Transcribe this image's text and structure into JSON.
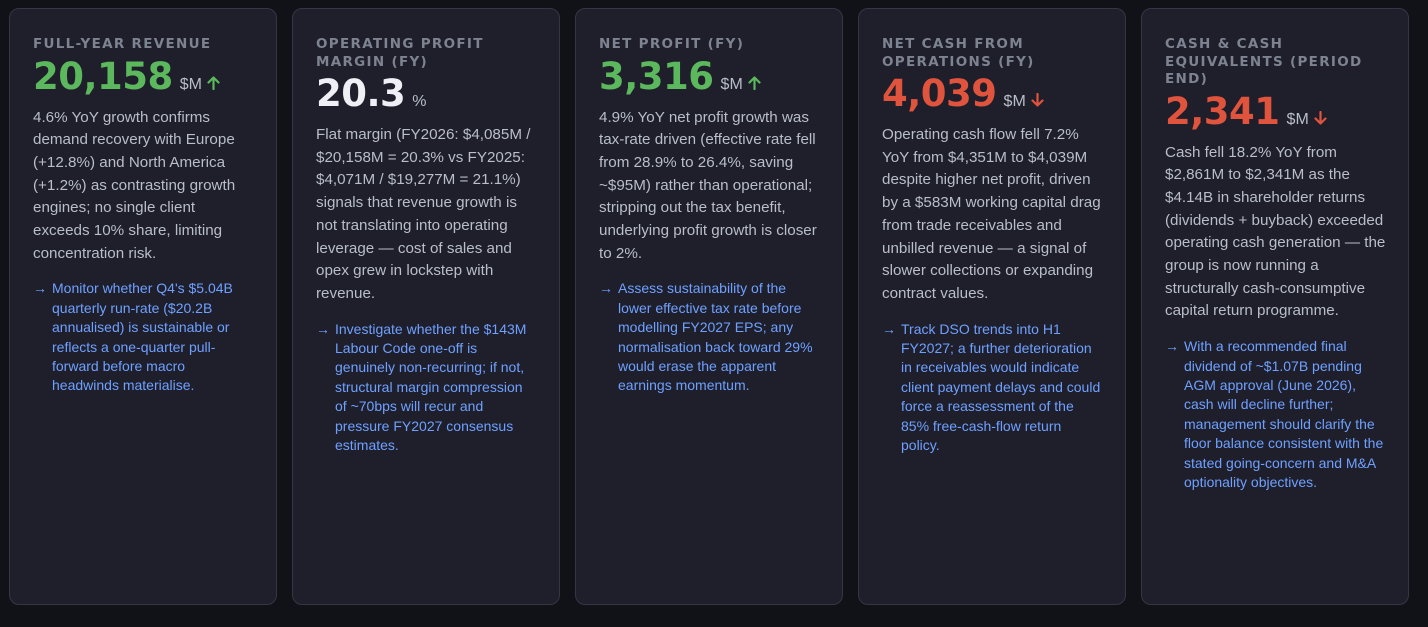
{
  "colors": {
    "positive": "#5cb85c",
    "negative": "#e0533d",
    "neutral": "#eef0f5",
    "action": "#6fa0ff"
  },
  "cards": [
    {
      "label": "FULL-YEAR REVENUE",
      "value": "20,158",
      "unit": "$M",
      "trend": "up",
      "description": "4.6% YoY growth confirms demand recovery with Europe (+12.8%) and North America (+1.2%) as contrasting growth engines; no single client exceeds 10% share, limiting concentration risk.",
      "action_icon": "→",
      "action": "Monitor whether Q4's $5.04B quarterly run-rate ($20.2B annualised) is sustainable or reflects a one-quarter pull-forward before macro headwinds materialise."
    },
    {
      "label": "OPERATING PROFIT MARGIN (FY)",
      "value": "20.3",
      "unit": "%",
      "trend": "flat",
      "description": "Flat margin (FY2026: $4,085M / $20,158M = 20.3% vs FY2025: $4,071M / $19,277M = 21.1%) signals that revenue growth is not translating into operating leverage — cost of sales and opex grew in lockstep with revenue.",
      "action_icon": "→",
      "action": "Investigate whether the $143M Labour Code one-off is genuinely non-recurring; if not, structural margin compression of ~70bps will recur and pressure FY2027 consensus estimates."
    },
    {
      "label": "NET PROFIT (FY)",
      "value": "3,316",
      "unit": "$M",
      "trend": "up",
      "description": "4.9% YoY net profit growth was tax-rate driven (effective rate fell from 28.9% to 26.4%, saving ~$95M) rather than operational; stripping out the tax benefit, underlying profit growth is closer to 2%.",
      "action_icon": "→",
      "action": "Assess sustainability of the lower effective tax rate before modelling FY2027 EPS; any normalisation back toward 29% would erase the apparent earnings momentum."
    },
    {
      "label": "NET CASH FROM OPERATIONS (FY)",
      "value": "4,039",
      "unit": "$M",
      "trend": "down",
      "description": "Operating cash flow fell 7.2% YoY from $4,351M to $4,039M despite higher net profit, driven by a $583M working capital drag from trade receivables and unbilled revenue — a signal of slower collections or expanding contract values.",
      "action_icon": "→",
      "action": "Track DSO trends into H1 FY2027; a further deterioration in receivables would indicate client payment delays and could force a reassessment of the 85% free-cash-flow return policy."
    },
    {
      "label": "CASH & CASH EQUIVALENTS (PERIOD END)",
      "value": "2,341",
      "unit": "$M",
      "trend": "down",
      "description": "Cash fell 18.2% YoY from $2,861M to $2,341M as the $4.14B in shareholder returns (dividends + buyback) exceeded operating cash generation — the group is now running a structurally cash-consumptive capital return programme.",
      "action_icon": "→",
      "action": "With a recommended final dividend of ~$1.07B pending AGM approval (June 2026), cash will decline further; management should clarify the floor balance consistent with the stated going-concern and M&A optionality objectives."
    }
  ]
}
